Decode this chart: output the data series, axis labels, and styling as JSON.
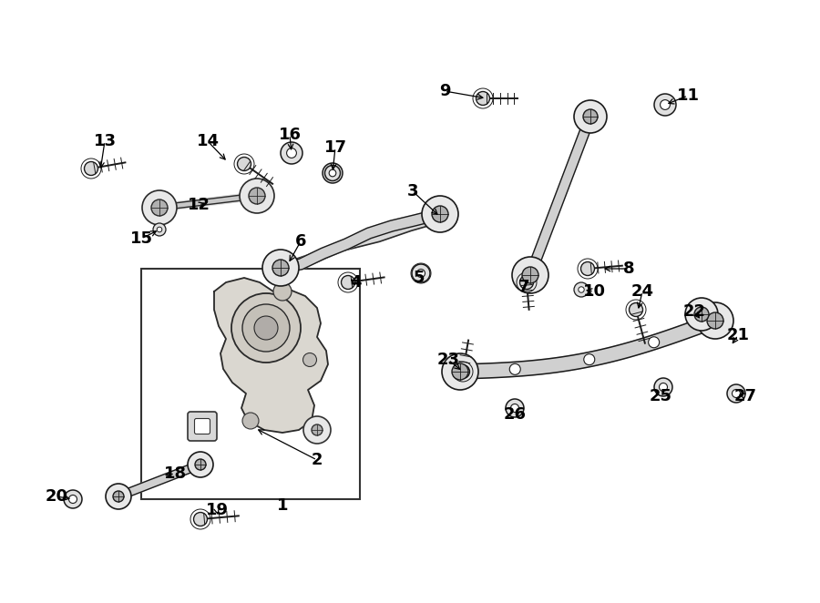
{
  "bg_color": "#ffffff",
  "line_color": "#1a1a1a",
  "fig_width": 9.0,
  "fig_height": 6.62,
  "label_fontsize": 13,
  "label_fontweight": "bold",
  "part_color": "#ffffff",
  "part_edge": "#1a1a1a",
  "shade_color": "#d8d8d8",
  "dark_shade": "#a8a8a8"
}
